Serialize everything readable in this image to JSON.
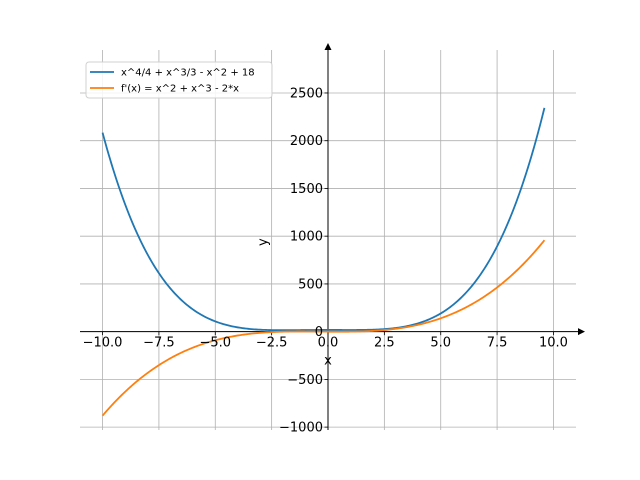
{
  "chart_data": {
    "type": "line",
    "xlabel": "x",
    "ylabel": "y",
    "xlim": [
      -11.0,
      11.0
    ],
    "ylim": [
      -1030,
      2950
    ],
    "xticks": [
      -10.0,
      -7.5,
      -5.0,
      -2.5,
      0.0,
      2.5,
      5.0,
      7.5,
      10.0
    ],
    "xtick_labels": [
      "−10.0",
      "−7.5",
      "−5.0",
      "−2.5",
      "0.0",
      "2.5",
      "5.0",
      "7.5",
      "10.0"
    ],
    "yticks": [
      -1000,
      -500,
      0,
      500,
      1000,
      1500,
      2000,
      2500
    ],
    "ytick_labels": [
      "−1000",
      "−500",
      "0",
      "500",
      "1000",
      "1500",
      "2000",
      "2500"
    ],
    "grid": true,
    "legend_position": "top-left",
    "x_range": [
      -10.0,
      9.6
    ],
    "series": [
      {
        "name": "x^4/4 + x^3/3 - x^2 + 18",
        "color": "#1f77b4",
        "formula": "x^4/4 + x^3/3 - x^2 + 18"
      },
      {
        "name": "f'(x) = x^2 + x^3 - 2*x",
        "color": "#ff7f0e",
        "formula": "x^2 + x^3 - 2*x"
      }
    ]
  }
}
